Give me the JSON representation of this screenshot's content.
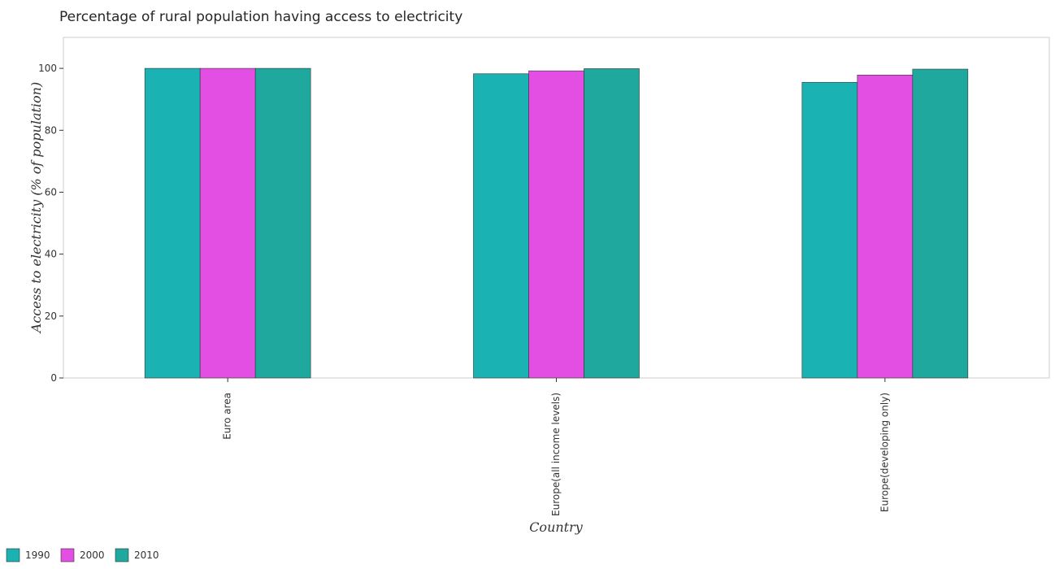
{
  "chart_data": {
    "type": "bar",
    "title": "Percentage of rural population having access to electricity",
    "xlabel": "Country",
    "ylabel": "Access to electricity (% of population)",
    "categories": [
      "Euro area",
      "Europe(all income levels)",
      "Europe(developing only)"
    ],
    "series": [
      {
        "name": "1990",
        "color": "#1ab2b2",
        "values": [
          100,
          98.25,
          95.5
        ]
      },
      {
        "name": "2000",
        "color": "#e34fe3",
        "values": [
          100,
          99.2,
          97.85
        ]
      },
      {
        "name": "2010",
        "color": "#1fa89e",
        "values": [
          100,
          99.9,
          99.75
        ]
      }
    ],
    "ylim": [
      0,
      110
    ],
    "yticks": [
      0,
      20,
      40,
      60,
      80,
      100
    ],
    "grid": false,
    "legend_position": "bottom-left"
  }
}
